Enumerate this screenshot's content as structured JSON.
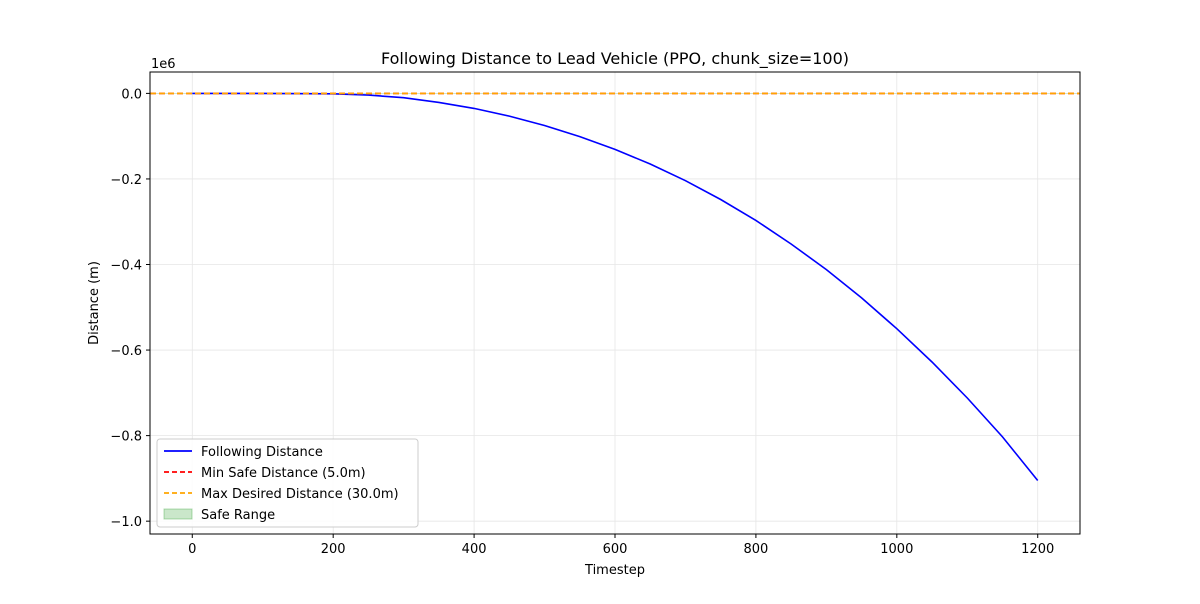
{
  "chart_data": {
    "type": "line",
    "title": "Following Distance to Lead Vehicle (PPO, chunk_size=100)",
    "xlabel": "Timestep",
    "ylabel": "Distance (m)",
    "y_offset_label": "1e6",
    "xlim": [
      -60,
      1260
    ],
    "ylim": [
      -1.03,
      0.05
    ],
    "x_ticks": [
      0,
      200,
      400,
      600,
      800,
      1000,
      1200
    ],
    "y_ticks": [
      0.0,
      -0.2,
      -0.4,
      -0.6,
      -0.8,
      -1.0
    ],
    "y_tick_labels": [
      "0.0",
      "−0.2",
      "−0.4",
      "−0.6",
      "−0.8",
      "−1.0"
    ],
    "grid": true,
    "legend_position": "lower-left",
    "series": [
      {
        "name": "Following Distance",
        "color": "#0000ff",
        "style": "solid",
        "x": [
          0,
          100,
          200,
          250,
          300,
          350,
          400,
          450,
          500,
          550,
          600,
          650,
          700,
          750,
          800,
          850,
          900,
          950,
          1000,
          1050,
          1100,
          1150,
          1200
        ],
        "y": [
          0.0,
          0.0,
          -0.001,
          -0.004,
          -0.01,
          -0.021,
          -0.035,
          -0.053,
          -0.075,
          -0.101,
          -0.131,
          -0.165,
          -0.204,
          -0.248,
          -0.297,
          -0.352,
          -0.412,
          -0.478,
          -0.55,
          -0.628,
          -0.712,
          -0.803,
          -0.905
        ]
      },
      {
        "name": "Min Safe Distance (5.0m)",
        "color": "#ff0000",
        "style": "dashed",
        "x": [
          -60,
          1260
        ],
        "y": [
          5e-06,
          5e-06
        ]
      },
      {
        "name": "Max Desired Distance (30.0m)",
        "color": "#ffa500",
        "style": "dashed",
        "x": [
          -60,
          1260
        ],
        "y": [
          3e-05,
          3e-05
        ]
      },
      {
        "name": "Safe Range",
        "color": "#2ca02c",
        "style": "fill",
        "y_range": [
          5e-06,
          3e-05
        ]
      }
    ]
  }
}
